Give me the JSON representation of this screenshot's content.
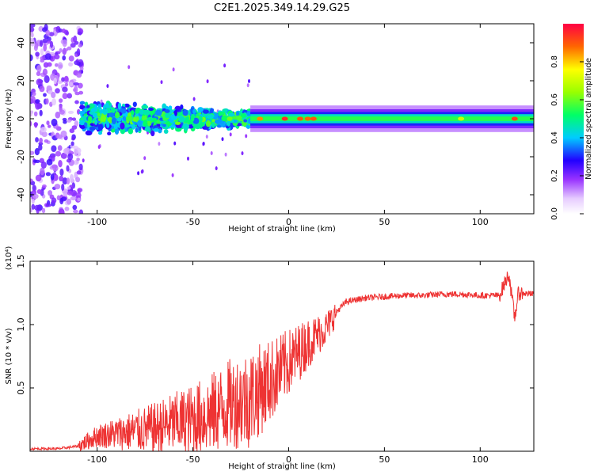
{
  "title": "C2E1.2025.349.14.29.G25",
  "chart_data": [
    {
      "type": "heatmap",
      "xlabel": "Height of straight line (km)",
      "ylabel": "Frequency (Hz)",
      "xlim": [
        -135,
        128
      ],
      "ylim": [
        -50,
        50
      ],
      "xticks": [
        -100,
        -50,
        0,
        50,
        100
      ],
      "yticks": [
        -40,
        -20,
        0,
        20,
        40
      ],
      "xtick_labels": [
        "-100",
        "-50",
        "0",
        "50",
        "100"
      ],
      "ytick_labels": [
        "-40",
        "-20",
        "0",
        "20",
        "40"
      ],
      "colorbar": {
        "label": "Normalized spectral amplitude",
        "range": [
          0,
          1
        ],
        "ticks": [
          0.0,
          0.2,
          0.4,
          0.6,
          0.8
        ],
        "tick_labels": [
          "0.0",
          "0.2",
          "0.4",
          "0.6",
          "0.8"
        ]
      },
      "description_regions": [
        {
          "x_range": [
            -135,
            -108
          ],
          "freq_spread_hz": 50,
          "level": 0.15
        },
        {
          "x_range": [
            -108,
            -20
          ],
          "freq_spread_hz": 12,
          "level": 0.45
        },
        {
          "x_range": [
            -20,
            128
          ],
          "freq_spread_hz": 2,
          "level": 0.55
        }
      ]
    },
    {
      "type": "line",
      "xlabel": "Height of straight line (km)",
      "ylabel": "SNR (10 * v/v)",
      "scale_label": "(x10⁴)",
      "xlim": [
        -135,
        128
      ],
      "ylim": [
        0,
        1.5
      ],
      "xticks": [
        -100,
        -50,
        0,
        50,
        100
      ],
      "yticks": [
        0.5,
        1.0,
        1.5
      ],
      "xtick_labels": [
        "-100",
        "-50",
        "0",
        "50",
        "100"
      ],
      "ytick_labels": [
        "0.5",
        "1.0",
        "1.5"
      ],
      "series": [
        {
          "name": "SNR",
          "color": "#ee3333",
          "x": [
            -135,
            -120,
            -110,
            -100,
            -90,
            -80,
            -70,
            -60,
            -50,
            -40,
            -30,
            -20,
            -10,
            0,
            10,
            20,
            25,
            30,
            40,
            50,
            60,
            70,
            80,
            90,
            100,
            110,
            115,
            118,
            120,
            128
          ],
          "y": [
            0.02,
            0.02,
            0.04,
            0.12,
            0.14,
            0.16,
            0.18,
            0.22,
            0.25,
            0.3,
            0.38,
            0.42,
            0.55,
            0.7,
            0.85,
            0.98,
            1.1,
            1.18,
            1.21,
            1.22,
            1.23,
            1.23,
            1.24,
            1.24,
            1.23,
            1.23,
            1.4,
            1.05,
            1.25,
            1.24
          ]
        }
      ]
    }
  ]
}
